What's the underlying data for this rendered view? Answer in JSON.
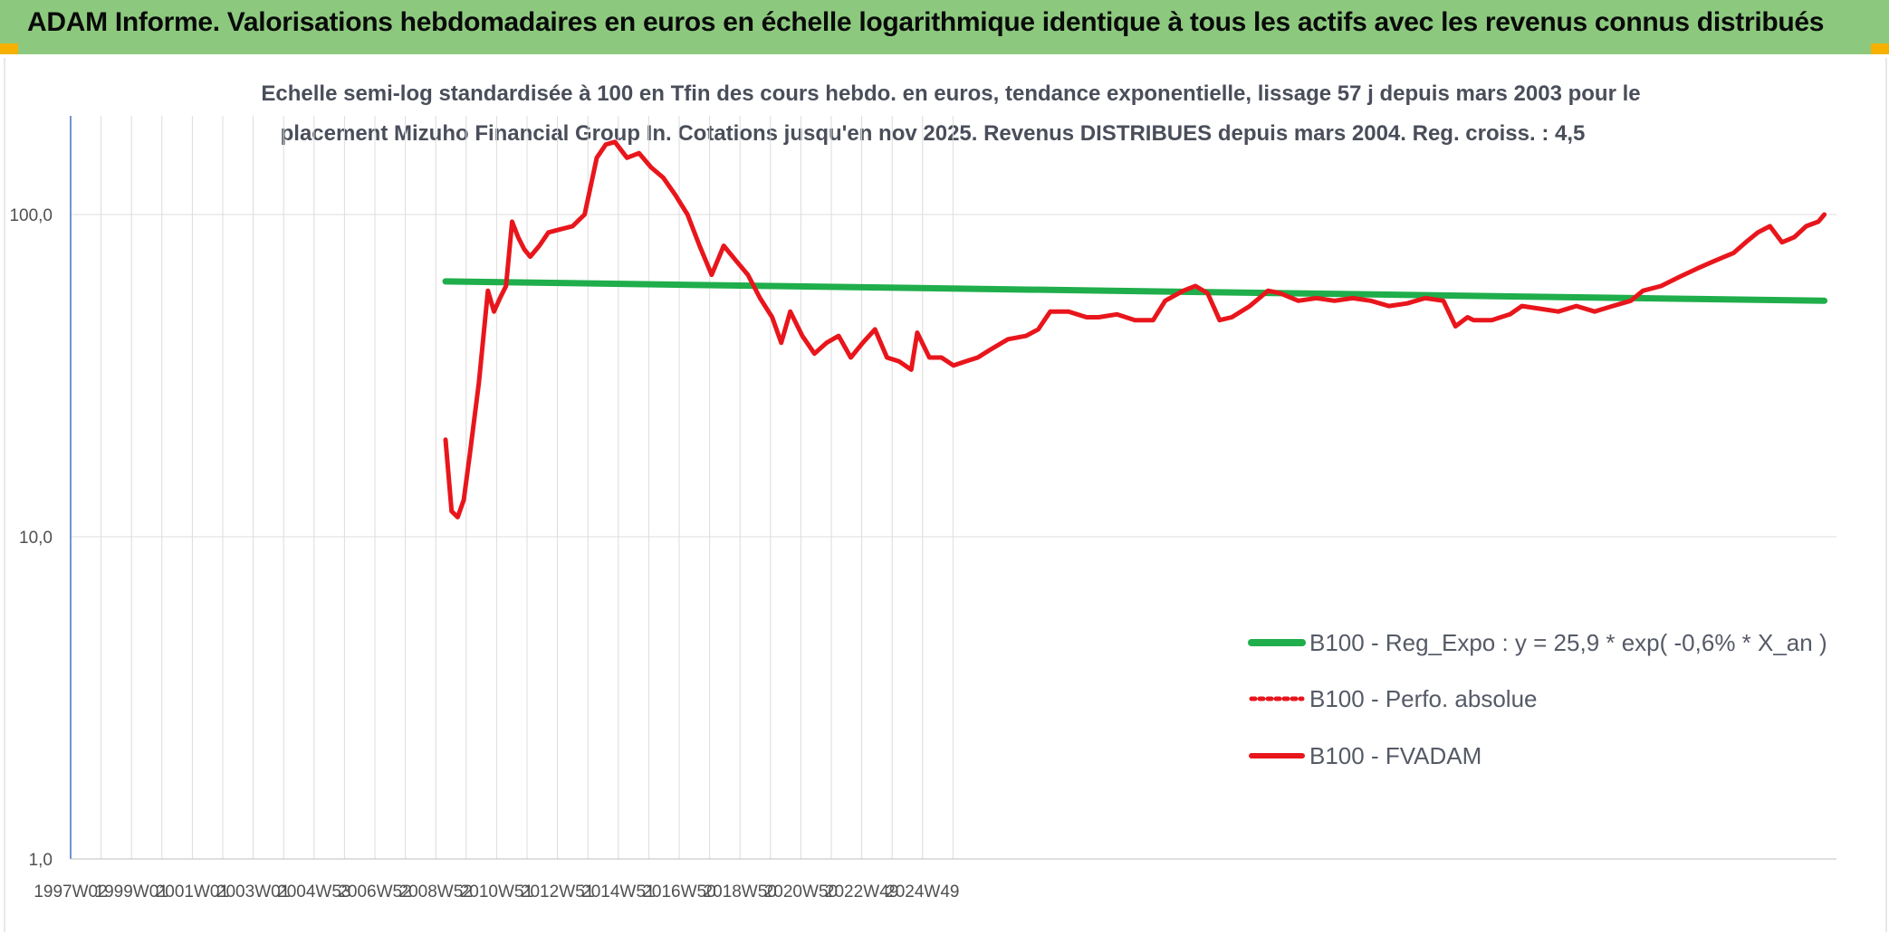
{
  "header": {
    "title": "ADAM Informe. Valorisations hebdomadaires en euros en échelle logarithmique identique à tous les actifs avec les revenus connus distribués"
  },
  "colors": {
    "banner": "#8cc97e",
    "regression": "#1fae4b",
    "fvadam": "#e8161c",
    "perfo": "#e8161c",
    "grid": "#dcdcdc",
    "axis": "#4472c4"
  },
  "chart_data": {
    "type": "line",
    "subtitle_line1": "Echelle semi-log standardisée à 100 en Tfin des cours hebdo. en euros, tendance exponentielle, lissage 57 j depuis mars 2003 pour le",
    "subtitle_line2": "placement Mizuho Financial Group In. Cotations jusqu'en nov 2025. Revenus DISTRIBUES depuis mars 2004. Reg. croiss. : 4,5",
    "y_scale": "log",
    "ylim": [
      1,
      200
    ],
    "y_ticks": [
      "1,0",
      "10,0",
      "100,0"
    ],
    "x_ticks": [
      "1997W02",
      "1999W01",
      "2001W01",
      "2003W01",
      "2004W53",
      "2006W52",
      "2008W52",
      "2010W51",
      "2012W51",
      "2014W51",
      "2016W50",
      "2018W50",
      "2020W50",
      "2022W49",
      "2024W49"
    ],
    "xlim": [
      1997.0,
      2026.2
    ],
    "grid": true,
    "legend_position": "bottom-right",
    "legend": [
      {
        "label": "B100 - Reg_Expo : y = 25,9 * exp( -0,6% *  X_an )",
        "style": "solid-green"
      },
      {
        "label": "B100 - Perfo. absolue",
        "style": "dotted-red"
      },
      {
        "label": "B100 - FVADAM",
        "style": "solid-red"
      }
    ],
    "series": [
      {
        "name": "B100 - Reg_Expo : y = 25,9 * exp( -0,6% *  X_an )",
        "x": [
          2003.2,
          2026.0
        ],
        "y": [
          62,
          54
        ]
      },
      {
        "name": "B100 - Perfo. absolue",
        "x": [],
        "y": []
      },
      {
        "name": "B100 - FVADAM",
        "x": [
          2003.2,
          2003.3,
          2003.4,
          2003.5,
          2003.6,
          2003.75,
          2003.9,
          2004.0,
          2004.1,
          2004.2,
          2004.3,
          2004.4,
          2004.5,
          2004.6,
          2004.75,
          2004.9,
          2005.1,
          2005.3,
          2005.5,
          2005.7,
          2005.85,
          2006.0,
          2006.2,
          2006.4,
          2006.6,
          2006.8,
          2007.0,
          2007.2,
          2007.4,
          2007.6,
          2007.8,
          2008.0,
          2008.2,
          2008.4,
          2008.6,
          2008.75,
          2008.9,
          2009.1,
          2009.3,
          2009.5,
          2009.7,
          2009.9,
          2010.1,
          2010.3,
          2010.5,
          2010.7,
          2010.9,
          2011.0,
          2011.2,
          2011.4,
          2011.6,
          2011.8,
          2012.0,
          2012.2,
          2012.5,
          2012.8,
          2013.0,
          2013.2,
          2013.5,
          2013.8,
          2014.0,
          2014.3,
          2014.6,
          2014.9,
          2015.1,
          2015.4,
          2015.6,
          2015.8,
          2016.0,
          2016.2,
          2016.5,
          2016.8,
          2017.0,
          2017.3,
          2017.6,
          2017.9,
          2018.2,
          2018.5,
          2018.8,
          2019.1,
          2019.4,
          2019.7,
          2019.9,
          2020.1,
          2020.2,
          2020.5,
          2020.8,
          2021.0,
          2021.3,
          2021.6,
          2021.9,
          2022.2,
          2022.5,
          2022.8,
          2023.0,
          2023.3,
          2023.6,
          2023.9,
          2024.2,
          2024.5,
          2024.7,
          2024.9,
          2025.1,
          2025.3,
          2025.5,
          2025.7,
          2025.9,
          2026.0
        ],
        "y": [
          20,
          12,
          11.5,
          13,
          18,
          30,
          58,
          50,
          55,
          60,
          95,
          85,
          78,
          74,
          80,
          88,
          90,
          92,
          100,
          150,
          165,
          168,
          150,
          155,
          140,
          130,
          115,
          100,
          80,
          65,
          80,
          72,
          65,
          55,
          48,
          40,
          50,
          42,
          37,
          40,
          42,
          36,
          40,
          44,
          36,
          35,
          33,
          43,
          36,
          36,
          34,
          35,
          36,
          38,
          41,
          42,
          44,
          50,
          50,
          48,
          48,
          49,
          47,
          47,
          54,
          58,
          60,
          57,
          47,
          48,
          52,
          58,
          57,
          54,
          55,
          54,
          55,
          54,
          52,
          53,
          55,
          54,
          45,
          48,
          47,
          47,
          49,
          52,
          51,
          50,
          52,
          50,
          52,
          54,
          58,
          60,
          64,
          68,
          72,
          76,
          82,
          88,
          92,
          82,
          85,
          92,
          95,
          100
        ]
      }
    ]
  }
}
